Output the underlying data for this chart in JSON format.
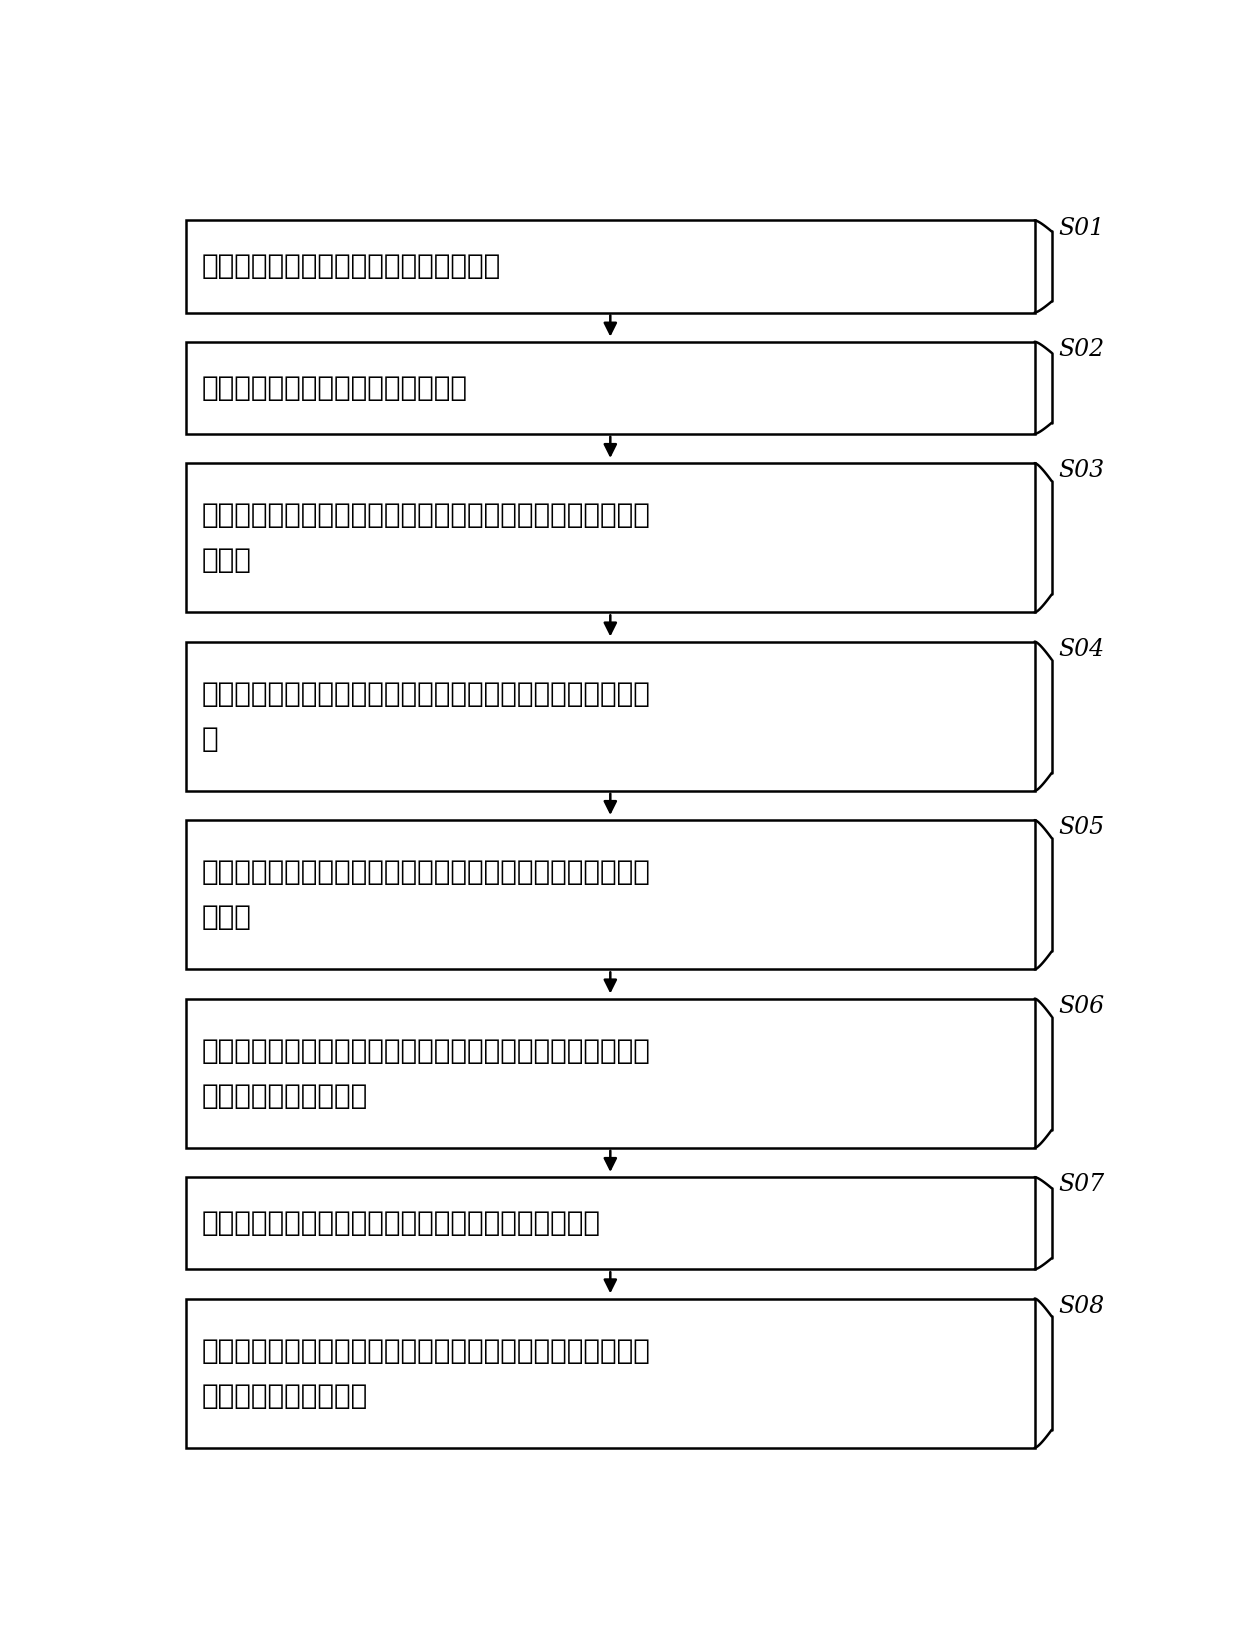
{
  "steps": [
    {
      "id": "S01",
      "lines": [
        "真空环境提供步骤，包括提供一真空环境"
      ],
      "n_text_lines": 1
    },
    {
      "id": "S02",
      "lines": [
        "基板提供步骤，包括提供一玻璃基板"
      ],
      "n_text_lines": 1
    },
    {
      "id": "S03",
      "lines": [
        "下一氧化硅层形成步骤，包括形成一下一氧化硅层到所述玻璃",
        "基板上"
      ],
      "n_text_lines": 2
    },
    {
      "id": "S04",
      "lines": [
        "氮化硅层形成步骤，包括形成一氮化硅层到所述下一氧化硅层",
        "上"
      ],
      "n_text_lines": 2
    },
    {
      "id": "S05",
      "lines": [
        "上一氧化硅层形成步骤，包括形成一上一氧化硅层到所述氮化",
        "硅层上"
      ],
      "n_text_lines": 2
    },
    {
      "id": "S06",
      "lines": [
        "非晶硅层形成步骤，包括在所述真空环境中，形成一非晶硅层",
        "到所述上一氧化硅层上"
      ],
      "n_text_lines": 2
    },
    {
      "id": "S07",
      "lines": [
        "保护层形成步骤，包括形成一保护层到所述非晶硅层上"
      ],
      "n_text_lines": 1
    },
    {
      "id": "S08",
      "lines": [
        "退火步骤，包括对所述非晶硅层进行准分子雷射退火以在所述",
        "非晶硅层上形成多晶硅"
      ],
      "n_text_lines": 2
    }
  ],
  "bg_color": "#ffffff",
  "box_edge_color": "#000000",
  "text_color": "#000000",
  "label_color": "#000000",
  "arrow_color": "#000000",
  "font_size": 20,
  "label_font_size": 17
}
